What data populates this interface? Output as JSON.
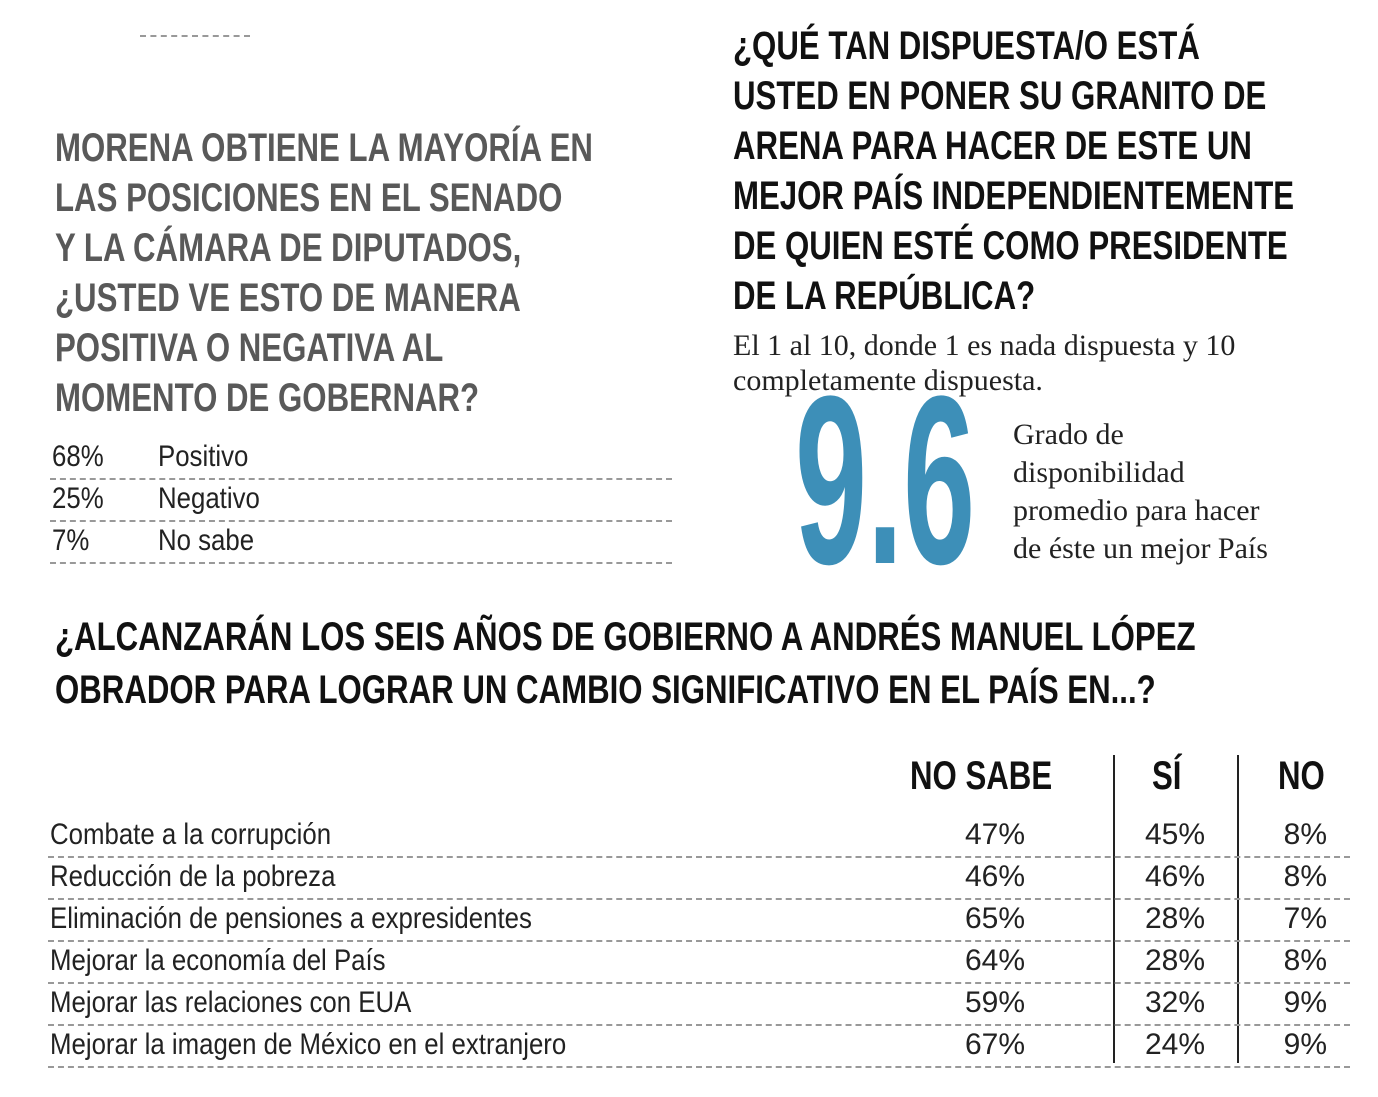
{
  "left_question": {
    "title_lines": [
      "MORENA OBTIENE LA MAYORÍA EN",
      "LAS POSICIONES EN EL SENADO",
      "Y LA CÁMARA DE DIPUTADOS,",
      "¿USTED VE ESTO DE MANERA",
      "POSITIVA O NEGATIVA AL",
      "MOMENTO DE GOBERNAR?"
    ],
    "rows": [
      [
        "68%",
        "Positivo"
      ],
      [
        "25%",
        "Negativo"
      ],
      [
        "7%",
        "No sabe"
      ]
    ]
  },
  "right_question": {
    "title_lines": [
      "¿QUÉ TAN DISPUESTA/O ESTÁ",
      "USTED EN PONER SU GRANITO DE",
      "ARENA PARA HACER DE ESTE UN",
      "MEJOR PAÍS INDEPENDIENTEMENTE",
      "DE QUIEN ESTÉ COMO PRESIDENTE",
      "DE LA REPÚBLICA?"
    ],
    "subtitle_lines": [
      "El 1 al 10, donde 1 es nada dispuesta y 10",
      "completamente dispuesta."
    ],
    "big_value": "9.6",
    "caption_lines": [
      "Grado de",
      "disponibilidad",
      "promedio para hacer",
      "de éste un mejor País"
    ]
  },
  "bottom_question": {
    "title_lines": [
      "¿ALCANZARÁN LOS SEIS AÑOS DE GOBIERNO A ANDRÉS MANUEL LÓPEZ",
      "OBRADOR PARA LOGRAR UN CAMBIO SIGNIFICATIVO EN EL PAÍS EN...?"
    ],
    "table": {
      "header": [
        "NO SABE",
        "SÍ",
        "NO"
      ],
      "rows": [
        [
          "Combate a la corrupción",
          "47%",
          "45%",
          "8%"
        ],
        [
          "Reducción de la pobreza",
          "46%",
          "46%",
          "8%"
        ],
        [
          "Eliminación de pensiones a expresidentes",
          "65%",
          "28%",
          "7%"
        ],
        [
          "Mejorar la economía del País",
          "64%",
          "28%",
          "8%"
        ],
        [
          "Mejorar las relaciones con EUA",
          "59%",
          "32%",
          "9%"
        ],
        [
          "Mejorar la imagen de México en el extranjero",
          "67%",
          "24%",
          "9%"
        ]
      ]
    }
  }
}
